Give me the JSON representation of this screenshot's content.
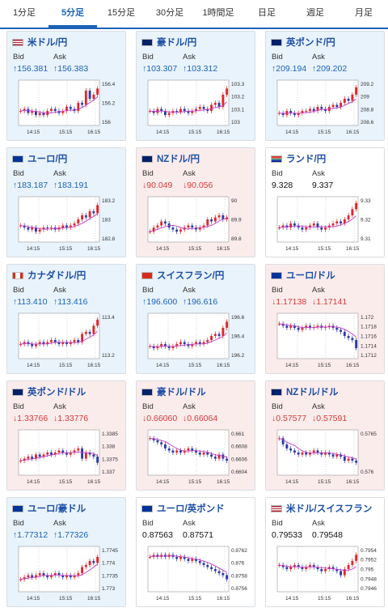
{
  "tabs": [
    {
      "label": "1分足",
      "active": false
    },
    {
      "label": "5分足",
      "active": true
    },
    {
      "label": "15分足",
      "active": false
    },
    {
      "label": "30分足",
      "active": false
    },
    {
      "label": "1時間足",
      "active": false
    },
    {
      "label": "日足",
      "active": false
    },
    {
      "label": "週足",
      "active": false
    },
    {
      "label": "月足",
      "active": false
    }
  ],
  "labels": {
    "bid": "Bid",
    "ask": "Ask"
  },
  "colors": {
    "up": "#1c63b8",
    "down": "#d43a3a",
    "up_bg": "#e9f3fb",
    "down_bg": "#fbecec",
    "candle_up": "#e0262b",
    "candle_down": "#2a3aa8",
    "ma": "#c23ac7"
  },
  "cards": [
    {
      "name": "米ドル/円",
      "flag": "us",
      "trend": "up",
      "bid": "↑156.381",
      "ask": "↑156.383",
      "ticks": [
        "156.4",
        "156.2",
        "156"
      ],
      "times": [
        "14:15",
        "15:15",
        "16:15"
      ],
      "shape": [
        0.3,
        0.35,
        0.25,
        0.3,
        0.2,
        0.25,
        0.2,
        0.3,
        0.35,
        0.3,
        0.25,
        0.3,
        0.4,
        0.35,
        0.3,
        0.5,
        0.45,
        0.8,
        0.6,
        0.7,
        0.85
      ]
    },
    {
      "name": "豪ドル/円",
      "flag": "au",
      "trend": "up",
      "bid": "↑103.307",
      "ask": "↑103.312",
      "ticks": [
        "103.3",
        "103.2",
        "103.1",
        "103"
      ],
      "times": [
        "14:15",
        "15:15",
        "16:15"
      ],
      "shape": [
        0.3,
        0.25,
        0.35,
        0.3,
        0.2,
        0.25,
        0.3,
        0.28,
        0.35,
        0.3,
        0.25,
        0.3,
        0.35,
        0.4,
        0.35,
        0.3,
        0.45,
        0.5,
        0.4,
        0.7,
        0.85
      ]
    },
    {
      "name": "英ポンド/円",
      "flag": "uk",
      "trend": "up",
      "bid": "↑209.194",
      "ask": "↑209.202",
      "ticks": [
        "209.2",
        "209",
        "208.8",
        "208.6"
      ],
      "times": [
        "14:15",
        "15:15",
        "16:15"
      ],
      "shape": [
        0.25,
        0.2,
        0.3,
        0.25,
        0.2,
        0.25,
        0.3,
        0.3,
        0.35,
        0.3,
        0.4,
        0.35,
        0.3,
        0.4,
        0.45,
        0.4,
        0.5,
        0.6,
        0.55,
        0.7,
        0.88
      ]
    },
    {
      "name": "ユーロ/円",
      "flag": "eu",
      "trend": "up",
      "bid": "↑183.187",
      "ask": "↑183.191",
      "ticks": [
        "183.2",
        "183",
        "182.8"
      ],
      "times": [
        "14:15",
        "15:15",
        "16:15"
      ],
      "shape": [
        0.35,
        0.3,
        0.25,
        0.3,
        0.2,
        0.25,
        0.3,
        0.28,
        0.3,
        0.25,
        0.3,
        0.35,
        0.3,
        0.35,
        0.4,
        0.5,
        0.6,
        0.55,
        0.7,
        0.65,
        0.85
      ]
    },
    {
      "name": "NZドル/円",
      "flag": "nz",
      "trend": "down",
      "bid": "↓90.049",
      "ask": "↓90.056",
      "ticks": [
        "90",
        "89.9",
        "89.8"
      ],
      "times": [
        "14:15",
        "15:15",
        "16:15"
      ],
      "shape": [
        0.2,
        0.3,
        0.35,
        0.45,
        0.4,
        0.3,
        0.25,
        0.2,
        0.25,
        0.3,
        0.35,
        0.3,
        0.25,
        0.3,
        0.35,
        0.5,
        0.45,
        0.55,
        0.6,
        0.5,
        0.55
      ]
    },
    {
      "name": "ランド/円",
      "flag": "za",
      "trend": "flat",
      "bid": "9.328",
      "ask": "9.337",
      "ticks": [
        "9.33",
        "9.32",
        "9.31"
      ],
      "times": [
        "14:15",
        "15:15",
        "16:15"
      ],
      "shape": [
        0.3,
        0.35,
        0.3,
        0.4,
        0.35,
        0.3,
        0.25,
        0.3,
        0.35,
        0.4,
        0.3,
        0.25,
        0.3,
        0.35,
        0.4,
        0.45,
        0.4,
        0.5,
        0.6,
        0.75,
        0.9
      ]
    },
    {
      "name": "カナダドル/円",
      "flag": "ca",
      "trend": "up",
      "bid": "↑113.410",
      "ask": "↑113.416",
      "ticks": [
        "113.4",
        "113.2"
      ],
      "times": [
        "14:15",
        "15:15",
        "16:15"
      ],
      "shape": [
        0.3,
        0.35,
        0.3,
        0.25,
        0.3,
        0.35,
        0.3,
        0.35,
        0.4,
        0.35,
        0.3,
        0.35,
        0.3,
        0.35,
        0.4,
        0.35,
        0.55,
        0.6,
        0.55,
        0.75,
        0.9
      ]
    },
    {
      "name": "スイスフラン/円",
      "flag": "ch",
      "trend": "up",
      "bid": "↑196.600",
      "ask": "↑196.616",
      "ticks": [
        "196.6",
        "196.4",
        "196.2"
      ],
      "times": [
        "14:15",
        "15:15",
        "16:15"
      ],
      "shape": [
        0.25,
        0.2,
        0.25,
        0.3,
        0.25,
        0.2,
        0.25,
        0.3,
        0.35,
        0.3,
        0.25,
        0.3,
        0.35,
        0.3,
        0.35,
        0.4,
        0.5,
        0.55,
        0.5,
        0.7,
        0.85
      ]
    },
    {
      "name": "ユーロ/ドル",
      "flag": "eu",
      "trend": "down",
      "bid": "↓1.17138",
      "ask": "↓1.17141",
      "ticks": [
        "1.172",
        "1.1718",
        "1.1716",
        "1.1714",
        "1.1712"
      ],
      "times": [
        "14:15",
        "15:15",
        "16:15"
      ],
      "shape": [
        0.8,
        0.75,
        0.7,
        0.75,
        0.7,
        0.65,
        0.7,
        0.75,
        0.7,
        0.72,
        0.75,
        0.7,
        0.72,
        0.75,
        0.7,
        0.65,
        0.6,
        0.5,
        0.45,
        0.4,
        0.2
      ]
    },
    {
      "name": "英ポンド/ドル",
      "flag": "uk",
      "trend": "down",
      "bid": "↓1.33766",
      "ask": "↓1.33776",
      "ticks": [
        "1.3385",
        "1.338",
        "1.3375",
        "1.337"
      ],
      "times": [
        "14:15",
        "15:15",
        "16:15"
      ],
      "shape": [
        0.3,
        0.35,
        0.4,
        0.35,
        0.45,
        0.4,
        0.45,
        0.5,
        0.45,
        0.5,
        0.55,
        0.5,
        0.45,
        0.5,
        0.55,
        0.6,
        0.35,
        0.5,
        0.45,
        0.4,
        0.25
      ]
    },
    {
      "name": "豪ドル/ドル",
      "flag": "au",
      "trend": "down",
      "bid": "↓0.66060",
      "ask": "↓0.66064",
      "ticks": [
        "0.661",
        "0.6608",
        "0.6606",
        "0.6604"
      ],
      "times": [
        "14:15",
        "15:15",
        "16:15"
      ],
      "shape": [
        0.85,
        0.8,
        0.75,
        0.7,
        0.6,
        0.55,
        0.5,
        0.55,
        0.5,
        0.55,
        0.6,
        0.55,
        0.5,
        0.45,
        0.5,
        0.45,
        0.4,
        0.35,
        0.45,
        0.35,
        0.3
      ]
    },
    {
      "name": "NZドル/ドル",
      "flag": "nz",
      "trend": "down",
      "bid": "↓0.57577",
      "ask": "↓0.57591",
      "ticks": [
        "0.5765",
        "0.576"
      ],
      "times": [
        "14:15",
        "15:15",
        "16:15"
      ],
      "shape": [
        0.85,
        0.7,
        0.6,
        0.55,
        0.5,
        0.45,
        0.5,
        0.45,
        0.5,
        0.55,
        0.5,
        0.45,
        0.5,
        0.45,
        0.4,
        0.45,
        0.4,
        0.3,
        0.35,
        0.3,
        0.25
      ]
    },
    {
      "name": "ユーロ/豪ドル",
      "flag": "eu",
      "trend": "up",
      "bid": "↑1.77312",
      "ask": "↑1.77326",
      "ticks": [
        "1.7745",
        "1.774",
        "1.7735",
        "1.773"
      ],
      "times": [
        "14:15",
        "15:15",
        "16:15"
      ],
      "shape": [
        0.25,
        0.3,
        0.35,
        0.3,
        0.35,
        0.4,
        0.35,
        0.3,
        0.35,
        0.4,
        0.35,
        0.3,
        0.35,
        0.3,
        0.35,
        0.4,
        0.55,
        0.6,
        0.7,
        0.65,
        0.8
      ]
    },
    {
      "name": "ユーロ/英ポンド",
      "flag": "eu",
      "trend": "flat",
      "bid": "0.87563",
      "ask": "0.87571",
      "ticks": [
        "0.8762",
        "0.876",
        "0.8758",
        "0.8756"
      ],
      "times": [
        "14:15",
        "15:15",
        "16:15"
      ],
      "shape": [
        0.8,
        0.85,
        0.8,
        0.85,
        0.8,
        0.85,
        0.8,
        0.75,
        0.8,
        0.75,
        0.7,
        0.75,
        0.7,
        0.65,
        0.6,
        0.55,
        0.5,
        0.45,
        0.4,
        0.35,
        0.25
      ]
    },
    {
      "name": "米ドル/スイスフラン",
      "flag": "us",
      "trend": "flat",
      "bid": "0.79533",
      "ask": "0.79548",
      "ticks": [
        "0.7954",
        "0.7952",
        "0.795",
        "0.7948",
        "0.7946"
      ],
      "times": [
        "14:15",
        "15:15",
        "16:15"
      ],
      "shape": [
        0.6,
        0.55,
        0.5,
        0.55,
        0.6,
        0.55,
        0.5,
        0.55,
        0.6,
        0.55,
        0.5,
        0.45,
        0.5,
        0.55,
        0.5,
        0.45,
        0.35,
        0.5,
        0.6,
        0.7,
        0.85
      ]
    }
  ]
}
